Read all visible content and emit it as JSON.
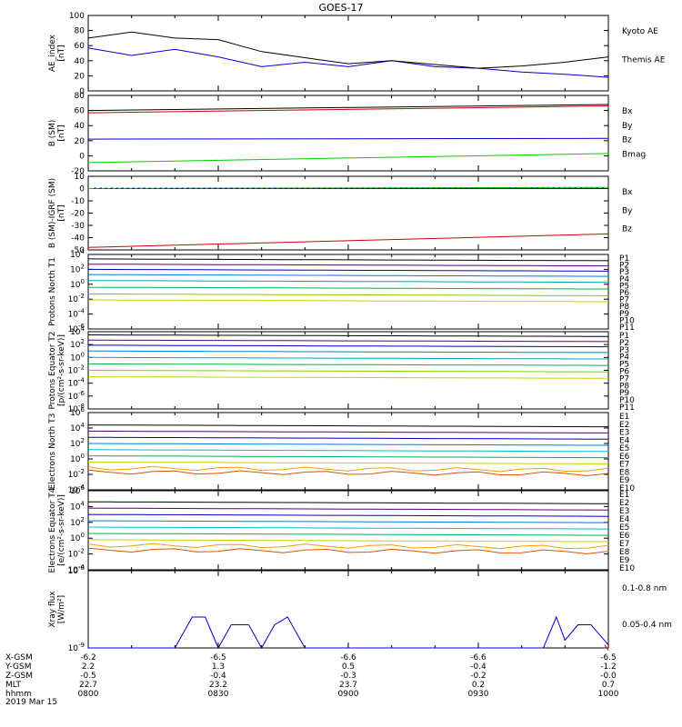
{
  "title": "GOES-17",
  "date_label": "2019 Mar 15",
  "x_ticks": [
    "0800",
    "0830",
    "0900",
    "0930",
    "1000"
  ],
  "ephemeris": [
    {
      "label": "X-GSM",
      "values": [
        "-6.2",
        "-6.5",
        "-6.6",
        "-6.6",
        "-6.5"
      ]
    },
    {
      "label": "Y-GSM",
      "values": [
        "2.2",
        "1.3",
        "0.5",
        "-0.4",
        "-1.2"
      ]
    },
    {
      "label": "Z-GSM",
      "values": [
        "-0.5",
        "-0.4",
        "-0.3",
        "-0.2",
        "-0.0"
      ]
    },
    {
      "label": "MLT",
      "values": [
        "22.7",
        "23.2",
        "23.7",
        "0.2",
        "0.7"
      ]
    },
    {
      "label": "hhmm",
      "values": [
        "0800",
        "0830",
        "0900",
        "0930",
        "1000"
      ]
    }
  ],
  "colors": {
    "black": "#000000",
    "blue": "#0000cc",
    "green": "#00cc00",
    "red": "#cc0000"
  },
  "chart_data": [
    {
      "type": "line",
      "ylabel": "AE_index [nT]",
      "ylim": [
        0,
        100
      ],
      "yticks": [
        "0",
        "20",
        "40",
        "60",
        "80",
        "100"
      ],
      "x": [
        "08:00",
        "08:10",
        "08:20",
        "08:30",
        "08:40",
        "08:50",
        "09:00",
        "09:10",
        "09:20",
        "09:30",
        "09:40",
        "09:50",
        "10:00"
      ],
      "series": [
        {
          "name": "Kyoto AE",
          "color": "#0000cc",
          "values": [
            57,
            47,
            55,
            45,
            32,
            38,
            32,
            40,
            32,
            30,
            25,
            22,
            18
          ]
        },
        {
          "name": "Themis AE",
          "color": "#000000",
          "values": [
            70,
            78,
            70,
            68,
            52,
            44,
            36,
            40,
            35,
            30,
            33,
            38,
            45
          ]
        }
      ]
    },
    {
      "type": "line",
      "ylabel": "B (SM) [nT]",
      "ylim": [
        -20,
        80
      ],
      "yticks": [
        "-20",
        "0",
        "20",
        "40",
        "60",
        "80"
      ],
      "x": [
        "08:00",
        "10:00"
      ],
      "series": [
        {
          "name": "Bx",
          "color": "#0000cc",
          "values": [
            22,
            23
          ]
        },
        {
          "name": "By",
          "color": "#00cc00",
          "values": [
            -9,
            3
          ]
        },
        {
          "name": "Bz",
          "color": "#cc0000",
          "values": [
            57,
            66
          ]
        },
        {
          "name": "Bmag",
          "color": "#000000",
          "values": [
            60,
            68
          ]
        }
      ]
    },
    {
      "type": "line",
      "ylabel": "B (SM)-IGRF (SM) [nT]",
      "ylim": [
        -50,
        10
      ],
      "yticks": [
        "-50",
        "-40",
        "-30",
        "-20",
        "-10",
        "0",
        "10"
      ],
      "x": [
        "08:00",
        "10:00"
      ],
      "series": [
        {
          "name": "Bx",
          "color": "#0000cc",
          "values": [
            0,
            0
          ]
        },
        {
          "name": "By",
          "color": "#00cc00",
          "values": [
            0,
            1
          ]
        },
        {
          "name": "Bz",
          "color": "#cc0000",
          "values": [
            -48,
            -37
          ]
        }
      ]
    },
    {
      "type": "line",
      "ylabel": "Protons North T1",
      "ylog": true,
      "ylim": [
        1e-06,
        10000.0
      ],
      "yticks": [
        "10^-6",
        "10^-4",
        "10^-2",
        "10^0",
        "10^2",
        "10^4"
      ],
      "channels": [
        "P1",
        "P2",
        "P3",
        "P4",
        "P5",
        "P6",
        "P7",
        "P8",
        "P9",
        "P10",
        "P11"
      ],
      "channel_colors": [
        "#000000",
        "#5a0078",
        "#0000c8",
        "#0078dc",
        "#00a0c0",
        "#00b050",
        "#80d000",
        "#c8d000",
        "#f0a000",
        "#e05000",
        "#c80000"
      ],
      "levels_log10": [
        3.4,
        2.7,
        2.0,
        1.3,
        0.5,
        -0.4,
        -1.3,
        -2.1,
        null,
        null,
        null
      ]
    },
    {
      "type": "line",
      "ylabel": "Protons Equator T2 [p/(cm²-s-sr-keV)]",
      "ylog": true,
      "ylim": [
        1e-08,
        10000.0
      ],
      "yticks": [
        "10^-8",
        "10^-6",
        "10^-4",
        "10^-2",
        "10^0",
        "10^2",
        "10^4"
      ],
      "channels": [
        "P1",
        "P2",
        "P3",
        "P4",
        "P5",
        "P6",
        "P7",
        "P8",
        "P9",
        "P10",
        "P11"
      ],
      "channel_colors": [
        "#000000",
        "#5a0078",
        "#0000c8",
        "#0078dc",
        "#00a0c0",
        "#00b050",
        "#80d000",
        "#c8d000",
        "#f0a000",
        "#e05000",
        "#c80000"
      ],
      "levels_log10": [
        3.5,
        2.7,
        1.9,
        1.0,
        0.0,
        -1.0,
        -2.0,
        -3.0,
        null,
        null,
        null
      ]
    },
    {
      "type": "line",
      "ylabel": "Electrons North T3",
      "ylog": true,
      "ylim": [
        0.0001,
        1000000.0
      ],
      "yticks": [
        "10^-4",
        "10^-2",
        "10^0",
        "10^2",
        "10^4",
        "10^6"
      ],
      "channels": [
        "E1",
        "E2",
        "E3",
        "E4",
        "E5",
        "E6",
        "E7",
        "E8",
        "E9",
        "E10"
      ],
      "channel_colors": [
        "#000000",
        "#5a0078",
        "#0000c8",
        "#0078dc",
        "#00b8d0",
        "#00b050",
        "#c8d000",
        "#f0a000",
        "#e05000",
        "#c80000"
      ],
      "levels_log10": [
        4.4,
        3.6,
        2.8,
        2.0,
        1.2,
        0.4,
        -0.4,
        -1.2,
        -1.7,
        null
      ]
    },
    {
      "type": "line",
      "ylabel": "Electrons Equator T4 [e/(cm²-s-sr-keV)]",
      "ylog": true,
      "ylim": [
        0.0001,
        1000000.0
      ],
      "yticks": [
        "10^-4",
        "10^-2",
        "10^0",
        "10^2",
        "10^4",
        "10^6"
      ],
      "channels": [
        "E1",
        "E2",
        "E3",
        "E4",
        "E5",
        "E6",
        "E7",
        "E8",
        "E9",
        "E10"
      ],
      "channel_colors": [
        "#000000",
        "#5a0078",
        "#0000c8",
        "#0078dc",
        "#00b8d0",
        "#00b050",
        "#c8d000",
        "#f0a000",
        "#e05000",
        "#c80000"
      ],
      "levels_log10": [
        4.6,
        3.8,
        3.0,
        2.2,
        1.4,
        0.6,
        -0.2,
        -0.9,
        -1.5,
        null
      ]
    },
    {
      "type": "line",
      "ylabel": "Xray flux [W/m²]",
      "ylog": true,
      "ylim": [
        1e-09,
        1e-08
      ],
      "yticks": [
        "10^-9",
        "10^-8"
      ],
      "x_minutes": [
        0,
        10,
        20,
        24,
        27,
        30,
        33,
        37,
        40,
        43,
        46,
        47,
        50,
        54,
        60,
        70,
        80,
        90,
        100,
        105,
        108,
        110,
        113,
        116,
        120
      ],
      "series": [
        {
          "name": "0.1-0.8 nm",
          "color": "#cc0000",
          "values_log10": [
            null,
            null,
            null,
            null,
            null,
            null,
            null,
            null,
            null,
            null,
            null,
            null,
            null,
            null,
            null,
            null,
            null,
            null,
            null,
            null,
            null,
            null,
            null,
            null,
            -8.96
          ]
        },
        {
          "name": "0.05-0.4 nm",
          "color": "#0000cc",
          "values_log10": [
            -9,
            -9,
            -9,
            -8.6,
            -8.6,
            -9,
            -8.7,
            -8.7,
            -9,
            -8.7,
            -8.6,
            -8.7,
            -9,
            -9,
            -9,
            -9,
            -9,
            -9,
            -9,
            -9,
            -8.6,
            -8.9,
            -8.7,
            -8.7,
            -8.96
          ]
        }
      ]
    }
  ]
}
